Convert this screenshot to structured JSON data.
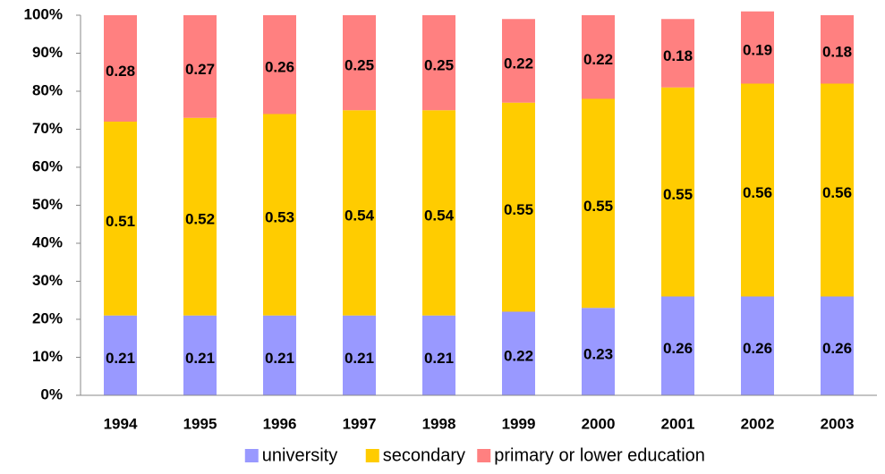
{
  "chart_data": {
    "type": "bar",
    "stacked": true,
    "categories": [
      "1994",
      "1995",
      "1996",
      "1997",
      "1998",
      "1999",
      "2000",
      "2001",
      "2002",
      "2003"
    ],
    "series": [
      {
        "name": "university",
        "color": "#9999ff",
        "values": [
          21,
          21,
          21,
          21,
          21,
          22,
          23,
          26,
          26,
          26
        ],
        "value_labels": [
          "0.21",
          "0.21",
          "0.21",
          "0.21",
          "0.21",
          "0.22",
          "0.23",
          "0.26",
          "0.26",
          "0.26"
        ]
      },
      {
        "name": "secondary",
        "color": "#ffcc00",
        "values": [
          51,
          52,
          53,
          54,
          54,
          55,
          55,
          55,
          56,
          56
        ],
        "value_labels": [
          "0.51",
          "0.52",
          "0.53",
          "0.54",
          "0.54",
          "0.55",
          "0.55",
          "0.55",
          "0.56",
          "0.56"
        ]
      },
      {
        "name": "primary or lower education",
        "color": "#ff8080",
        "values": [
          28,
          27,
          26,
          25,
          25,
          22,
          22,
          18,
          19,
          18
        ],
        "value_labels": [
          "0.28",
          "0.27",
          "0.26",
          "0.25",
          "0.25",
          "0.22",
          "0.22",
          "0.18",
          "0.19",
          "0.18"
        ]
      }
    ],
    "ylim": [
      0,
      100
    ],
    "yticks": [
      {
        "value": 0,
        "label": "0%"
      },
      {
        "value": 10,
        "label": "10%"
      },
      {
        "value": 20,
        "label": "20%"
      },
      {
        "value": 30,
        "label": "30%"
      },
      {
        "value": 40,
        "label": "40%"
      },
      {
        "value": 50,
        "label": "50%"
      },
      {
        "value": 60,
        "label": "60%"
      },
      {
        "value": 70,
        "label": "70%"
      },
      {
        "value": 80,
        "label": "80%"
      },
      {
        "value": 90,
        "label": "90%"
      },
      {
        "value": 100,
        "label": "100%"
      }
    ],
    "grid": false,
    "legend": "bottom"
  }
}
